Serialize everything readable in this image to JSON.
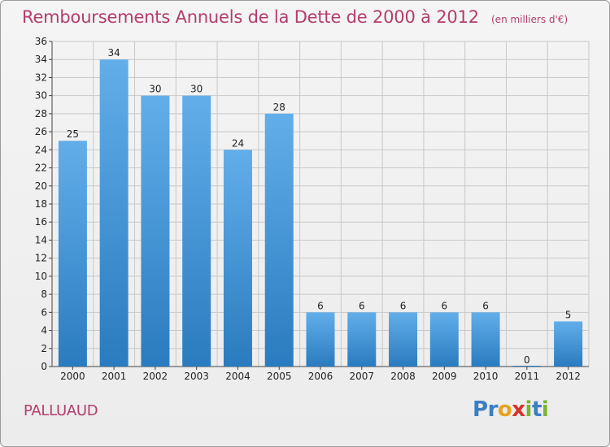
{
  "title": {
    "main": "Remboursements Annuels de la Dette de 2000 à 2012",
    "sub": "(en milliers d'€)"
  },
  "commune": "PALLUAUD",
  "logo": {
    "text": "Proxiti",
    "letters": [
      {
        "ch": "P",
        "color": "#3a7fc4"
      },
      {
        "ch": "r",
        "color": "#3a7fc4"
      },
      {
        "ch": "o",
        "color": "#e8a21a"
      },
      {
        "ch": "x",
        "color": "#d8312a"
      },
      {
        "ch": "i",
        "color": "#7ab52f"
      },
      {
        "ch": "t",
        "color": "#3a7fc4"
      },
      {
        "ch": "i",
        "color": "#7ab52f"
      }
    ]
  },
  "colors": {
    "bar_top": "#62aeea",
    "bar_bottom": "#2a7bbf",
    "title": "#b33d6e",
    "grid": "#c8c8c8"
  },
  "chart_data": {
    "type": "bar",
    "categories": [
      "2000",
      "2001",
      "2002",
      "2003",
      "2004",
      "2005",
      "2006",
      "2007",
      "2008",
      "2009",
      "2010",
      "2011",
      "2012"
    ],
    "values": [
      25,
      34,
      30,
      30,
      24,
      28,
      6,
      6,
      6,
      6,
      6,
      0,
      5
    ],
    "ylim": [
      0,
      36
    ],
    "yticks": [
      0,
      2,
      4,
      6,
      8,
      10,
      12,
      14,
      16,
      18,
      20,
      22,
      24,
      26,
      28,
      30,
      32,
      34,
      36
    ],
    "grid": true,
    "data_labels": true
  }
}
